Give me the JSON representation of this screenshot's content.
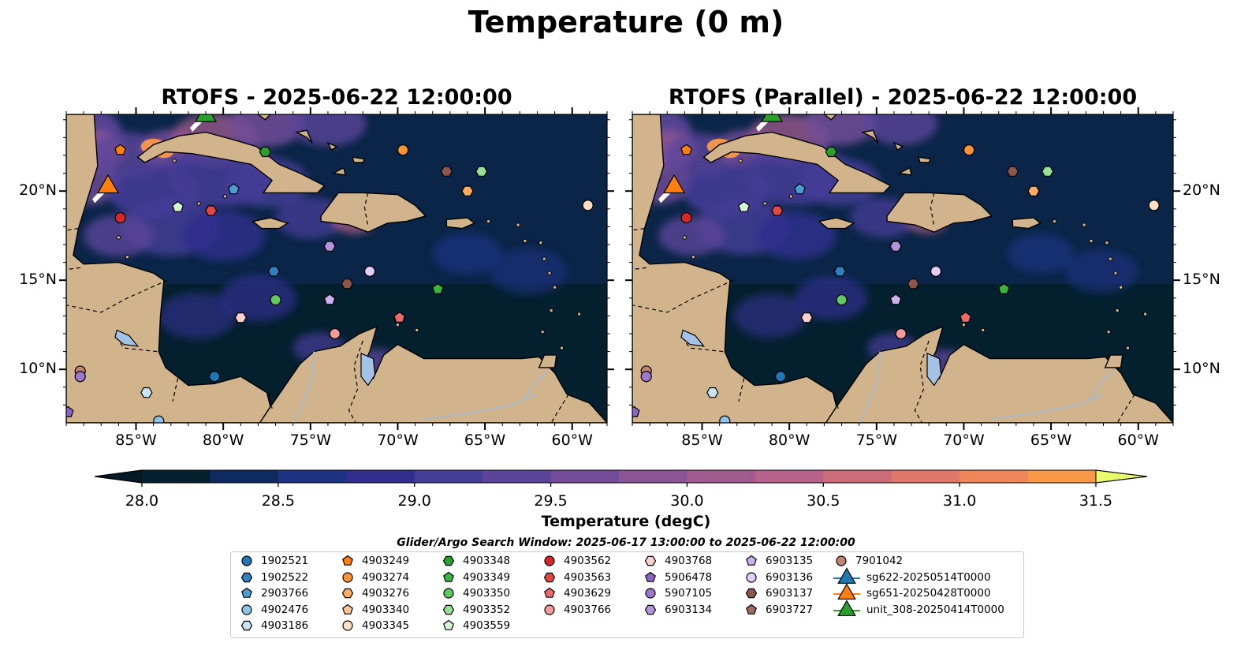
{
  "title": "Temperature (0 m)",
  "panels": [
    {
      "title": "RTOFS - 2025-06-22 12:00:00"
    },
    {
      "title": "RTOFS (Parallel) - 2025-06-22 12:00:00"
    }
  ],
  "axes": {
    "lon_range": [
      -89,
      -58
    ],
    "lat_range": [
      7,
      24.3
    ],
    "lon_ticks": [
      {
        "lon": -85,
        "label": "85°W"
      },
      {
        "lon": -80,
        "label": "80°W"
      },
      {
        "lon": -75,
        "label": "75°W"
      },
      {
        "lon": -70,
        "label": "70°W"
      },
      {
        "lon": -65,
        "label": "65°W"
      },
      {
        "lon": -60,
        "label": "60°W"
      }
    ],
    "lat_ticks": [
      {
        "lat": 20,
        "label": "20°N"
      },
      {
        "lat": 15,
        "label": "15°N"
      },
      {
        "lat": 10,
        "label": "10°N"
      }
    ]
  },
  "colorbar": {
    "label": "Temperature (degC)",
    "min": 28.0,
    "max": 31.5,
    "step": 0.25,
    "extend": "both",
    "tick_labels": [
      "28.0",
      "28.5",
      "29.0",
      "29.5",
      "30.0",
      "30.5",
      "31.0",
      "31.5"
    ],
    "colors": [
      "#04202f",
      "#0f2a60",
      "#1d3381",
      "#302f8e",
      "#463d99",
      "#5b459a",
      "#724c99",
      "#8b5495",
      "#a15b8e",
      "#b7628a",
      "#cd6c79",
      "#e0786b",
      "#ee8659",
      "#f79949",
      "#fcb341",
      "#f4d44b",
      "#e8f96a"
    ],
    "under_color": "#031a26",
    "over_color": "#e8fa6b"
  },
  "map_colors": {
    "ocean": "#04202f",
    "land": "#d2b48c",
    "lake": "#a4c2e6",
    "river": "#aab8c8",
    "coast": "#000000"
  },
  "legend": {
    "title": "Glider/Argo Search Window: 2025-06-17 13:00:00 to 2025-06-22 12:00:00",
    "columns": [
      [
        {
          "label": "1902521",
          "marker": "circle",
          "color": "#1f77b4"
        },
        {
          "label": "1902522",
          "marker": "hexagon",
          "color": "#2e80c0"
        },
        {
          "label": "2903766",
          "marker": "pentagon",
          "color": "#4a9ed2"
        },
        {
          "label": "4902476",
          "marker": "circle",
          "color": "#8fc3ea"
        },
        {
          "label": "4903186",
          "marker": "hexagon",
          "color": "#c8e2f6"
        }
      ],
      [
        {
          "label": "4903249",
          "marker": "pentagon",
          "color": "#ff7f0e"
        },
        {
          "label": "4903274",
          "marker": "circle",
          "color": "#ff9333"
        },
        {
          "label": "4903276",
          "marker": "hexagon",
          "color": "#ffac5e"
        },
        {
          "label": "4903340",
          "marker": "pentagon",
          "color": "#ffc895"
        },
        {
          "label": "4903345",
          "marker": "circle",
          "color": "#ffe0c4"
        }
      ],
      [
        {
          "label": "4903348",
          "marker": "hexagon",
          "color": "#2ca02c"
        },
        {
          "label": "4903349",
          "marker": "pentagon",
          "color": "#3cb43c"
        },
        {
          "label": "4903350",
          "marker": "circle",
          "color": "#62c862"
        },
        {
          "label": "4903352",
          "marker": "hexagon",
          "color": "#97de97"
        },
        {
          "label": "4903559",
          "marker": "pentagon",
          "color": "#d4f4d4"
        }
      ],
      [
        {
          "label": "4903562",
          "marker": "circle",
          "color": "#d62728"
        },
        {
          "label": "4903563",
          "marker": "hexagon",
          "color": "#e04848"
        },
        {
          "label": "4903629",
          "marker": "pentagon",
          "color": "#ec6a6a"
        },
        {
          "label": "4903766",
          "marker": "circle",
          "color": "#f59a9a"
        }
      ],
      [
        {
          "label": "4903768",
          "marker": "hexagon",
          "color": "#fcd0d0"
        },
        {
          "label": "5906478",
          "marker": "pentagon",
          "color": "#8c64c8"
        },
        {
          "label": "5907105",
          "marker": "circle",
          "color": "#9e77cf"
        },
        {
          "label": "6903134",
          "marker": "hexagon",
          "color": "#b393dd"
        }
      ],
      [
        {
          "label": "6903135",
          "marker": "pentagon",
          "color": "#cdb0ee"
        },
        {
          "label": "6903136",
          "marker": "circle",
          "color": "#e2cdf8"
        },
        {
          "label": "6903137",
          "marker": "hexagon",
          "color": "#8c564b"
        },
        {
          "label": "6903727",
          "marker": "pentagon",
          "color": "#a06a5e"
        }
      ],
      [
        {
          "label": "7901042",
          "marker": "circle",
          "color": "#c38373"
        },
        {
          "label": "sg622-20250514T0000",
          "marker": "triangle",
          "color": "#1f77b4"
        },
        {
          "label": "sg651-20250428T0000",
          "marker": "triangle",
          "color": "#ff7f0e"
        },
        {
          "label": "unit_308-20250414T0000",
          "marker": "triangle",
          "color": "#2ca02c"
        }
      ]
    ]
  },
  "floats": [
    {
      "id": "4903249",
      "lon": -85.9,
      "lat": 22.3
    },
    {
      "id": "4903274",
      "lon": -69.7,
      "lat": 22.3
    },
    {
      "id": "4903348",
      "lon": -77.6,
      "lat": 22.2
    },
    {
      "id": "6903137",
      "lon": -67.2,
      "lat": 21.1
    },
    {
      "id": "4903352",
      "lon": -65.2,
      "lat": 21.1
    },
    {
      "id": "4903276",
      "lon": -66.0,
      "lat": 20.0
    },
    {
      "id": "2903766",
      "lon": -79.4,
      "lat": 20.1
    },
    {
      "id": "4903559",
      "lon": -82.6,
      "lat": 19.1
    },
    {
      "id": "4903563",
      "lon": -80.7,
      "lat": 18.9
    },
    {
      "id": "4903562",
      "lon": -85.9,
      "lat": 18.5
    },
    {
      "id": "4903345",
      "lon": -59.1,
      "lat": 19.2
    },
    {
      "id": "6903134",
      "lon": -73.9,
      "lat": 16.9
    },
    {
      "id": "1902522",
      "lon": -77.1,
      "lat": 15.5
    },
    {
      "id": "6903136",
      "lon": -71.6,
      "lat": 15.5
    },
    {
      "id": "6903137",
      "lon": -72.9,
      "lat": 14.8
    },
    {
      "id": "4903349",
      "lon": -67.7,
      "lat": 14.5
    },
    {
      "id": "4903350",
      "lon": -77.0,
      "lat": 13.9
    },
    {
      "id": "6903135",
      "lon": -73.9,
      "lat": 13.9
    },
    {
      "id": "4903768",
      "lon": -79.0,
      "lat": 12.9
    },
    {
      "id": "4903629",
      "lon": -69.9,
      "lat": 12.9
    },
    {
      "id": "4903766",
      "lon": -73.6,
      "lat": 12.0
    },
    {
      "id": "7901042",
      "lon": -88.2,
      "lat": 9.9
    },
    {
      "id": "5907105",
      "lon": -88.2,
      "lat": 9.6
    },
    {
      "id": "1902521",
      "lon": -80.5,
      "lat": 9.6
    },
    {
      "id": "4903186",
      "lon": -84.4,
      "lat": 8.7
    },
    {
      "id": "5906478",
      "lon": -88.9,
      "lat": 7.6
    },
    {
      "id": "4902476",
      "lon": -83.7,
      "lat": 7.1
    }
  ],
  "gliders": [
    {
      "id": "sg651-20250428T0000",
      "lon": -86.6,
      "lat": 20.3
    },
    {
      "id": "unit_308-20250414T0000",
      "lon": -81.0,
      "lat": 24.3
    }
  ]
}
